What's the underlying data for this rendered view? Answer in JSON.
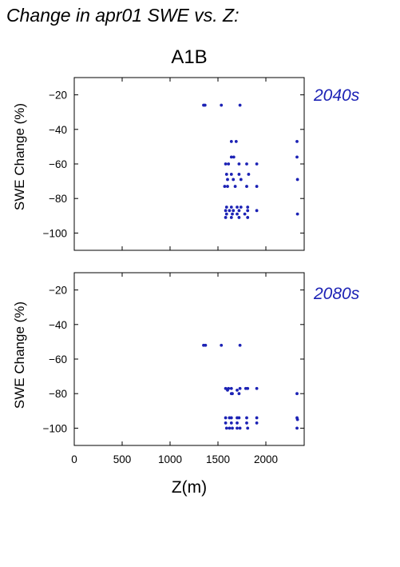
{
  "figure": {
    "title": "Change in apr01 SWE vs. Z:",
    "scenario": "A1B",
    "xlabel": "Z(m)",
    "point_color": "#1c22b5",
    "period_color": "#1c22b5"
  },
  "chart_data": [
    {
      "type": "scatter",
      "period_label": "2040s",
      "xlabel": "",
      "ylabel": "SWE Change (%)",
      "xlim": [
        0,
        2400
      ],
      "ylim": [
        -110,
        -10
      ],
      "x_ticks": [
        0,
        500,
        1000,
        1500,
        2000
      ],
      "y_ticks": [
        -20,
        -40,
        -60,
        -80,
        -100
      ],
      "grid": false,
      "points": [
        [
          1350,
          -26
        ],
        [
          1365,
          -26
        ],
        [
          1535,
          -26
        ],
        [
          1730,
          -26
        ],
        [
          1640,
          -47
        ],
        [
          1690,
          -47
        ],
        [
          2325,
          -47
        ],
        [
          1640,
          -56
        ],
        [
          1665,
          -56
        ],
        [
          2325,
          -56
        ],
        [
          1580,
          -60
        ],
        [
          1610,
          -60
        ],
        [
          1720,
          -60
        ],
        [
          1800,
          -60
        ],
        [
          1905,
          -60
        ],
        [
          1590,
          -66
        ],
        [
          1640,
          -66
        ],
        [
          1720,
          -66
        ],
        [
          1820,
          -66
        ],
        [
          1600,
          -69
        ],
        [
          1660,
          -69
        ],
        [
          1740,
          -69
        ],
        [
          2330,
          -69
        ],
        [
          1570,
          -73
        ],
        [
          1600,
          -73
        ],
        [
          1680,
          -73
        ],
        [
          1800,
          -73
        ],
        [
          1905,
          -73
        ],
        [
          1590,
          -85
        ],
        [
          1640,
          -85
        ],
        [
          1700,
          -85
        ],
        [
          1740,
          -85
        ],
        [
          1810,
          -85
        ],
        [
          1580,
          -87
        ],
        [
          1620,
          -87
        ],
        [
          1660,
          -87
        ],
        [
          1720,
          -87
        ],
        [
          1810,
          -87
        ],
        [
          1905,
          -87
        ],
        [
          1590,
          -89
        ],
        [
          1650,
          -89
        ],
        [
          1700,
          -89
        ],
        [
          1780,
          -89
        ],
        [
          2330,
          -89
        ],
        [
          1580,
          -91
        ],
        [
          1640,
          -91
        ],
        [
          1720,
          -91
        ],
        [
          1810,
          -91
        ]
      ]
    },
    {
      "type": "scatter",
      "period_label": "2080s",
      "xlabel": "Z(m)",
      "ylabel": "SWE Change (%)",
      "xlim": [
        0,
        2400
      ],
      "ylim": [
        -110,
        -10
      ],
      "x_ticks": [
        0,
        500,
        1000,
        1500,
        2000
      ],
      "y_ticks": [
        -20,
        -40,
        -60,
        -80,
        -100
      ],
      "grid": false,
      "points": [
        [
          1350,
          -52
        ],
        [
          1370,
          -52
        ],
        [
          1535,
          -52
        ],
        [
          1730,
          -52
        ],
        [
          1580,
          -77
        ],
        [
          1610,
          -77
        ],
        [
          1640,
          -77
        ],
        [
          1730,
          -77
        ],
        [
          1790,
          -77
        ],
        [
          1810,
          -77
        ],
        [
          1905,
          -77
        ],
        [
          1600,
          -78
        ],
        [
          1700,
          -78
        ],
        [
          1640,
          -80
        ],
        [
          1650,
          -80
        ],
        [
          1720,
          -80
        ],
        [
          2325,
          -80
        ],
        [
          1580,
          -94
        ],
        [
          1620,
          -94
        ],
        [
          1640,
          -94
        ],
        [
          1700,
          -94
        ],
        [
          1720,
          -94
        ],
        [
          1800,
          -94
        ],
        [
          1905,
          -94
        ],
        [
          2325,
          -94
        ],
        [
          1580,
          -97
        ],
        [
          1640,
          -97
        ],
        [
          1700,
          -97
        ],
        [
          1800,
          -97
        ],
        [
          1905,
          -97
        ],
        [
          2330,
          -95
        ],
        [
          1590,
          -100
        ],
        [
          1620,
          -100
        ],
        [
          1650,
          -100
        ],
        [
          1700,
          -100
        ],
        [
          1730,
          -100
        ],
        [
          1810,
          -100
        ],
        [
          2325,
          -100
        ]
      ]
    }
  ]
}
